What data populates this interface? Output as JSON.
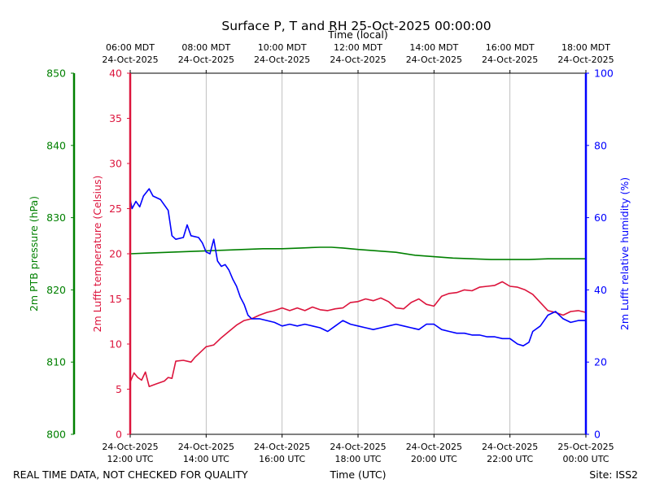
{
  "chart_data": {
    "type": "line",
    "title": "Surface P, T and RH 25-Oct-2025 00:00:00",
    "top_axis_label": "Time (local)",
    "bottom_axis_label": "Time (UTC)",
    "footer_left": "REAL TIME DATA, NOT CHECKED FOR QUALITY",
    "footer_right": "Site: ISS2",
    "x_hours_utc": [
      12,
      24
    ],
    "utc_ticks": [
      {
        "hour": 12,
        "date": "24-Oct-2025",
        "time": "12:00 UTC"
      },
      {
        "hour": 14,
        "date": "24-Oct-2025",
        "time": "14:00 UTC"
      },
      {
        "hour": 16,
        "date": "24-Oct-2025",
        "time": "16:00 UTC"
      },
      {
        "hour": 18,
        "date": "24-Oct-2025",
        "time": "18:00 UTC"
      },
      {
        "hour": 20,
        "date": "24-Oct-2025",
        "time": "20:00 UTC"
      },
      {
        "hour": 22,
        "date": "24-Oct-2025",
        "time": "22:00 UTC"
      },
      {
        "hour": 24,
        "date": "25-Oct-2025",
        "time": "00:00 UTC"
      }
    ],
    "local_ticks": [
      {
        "hour": 12,
        "time": "06:00 MDT",
        "date": "24-Oct-2025"
      },
      {
        "hour": 14,
        "time": "08:00 MDT",
        "date": "24-Oct-2025"
      },
      {
        "hour": 16,
        "time": "10:00 MDT",
        "date": "24-Oct-2025"
      },
      {
        "hour": 18,
        "time": "12:00 MDT",
        "date": "24-Oct-2025"
      },
      {
        "hour": 20,
        "time": "14:00 MDT",
        "date": "24-Oct-2025"
      },
      {
        "hour": 22,
        "time": "16:00 MDT",
        "date": "24-Oct-2025"
      },
      {
        "hour": 24,
        "time": "18:00 MDT",
        "date": "24-Oct-2025"
      }
    ],
    "grid": "vertical",
    "axes": {
      "pressure": {
        "label": "2m PTB pressure (hPa)",
        "color": "#008000",
        "ylim": [
          800,
          850
        ],
        "ticks": [
          800,
          810,
          820,
          830,
          840,
          850
        ]
      },
      "temperature": {
        "label": "2m Lufft temperature (Celsius)",
        "color": "#dc143c",
        "ylim": [
          0,
          40
        ],
        "ticks": [
          0,
          5,
          10,
          15,
          20,
          25,
          30,
          35,
          40
        ]
      },
      "humidity": {
        "label": "2m Lufft relative humidity (%)",
        "color": "#0000ff",
        "ylim": [
          0,
          100
        ],
        "ticks": [
          0,
          20,
          40,
          60,
          80,
          100
        ]
      }
    },
    "series": [
      {
        "name": "2m PTB pressure (hPa)",
        "axis": "pressure",
        "color": "#008000",
        "points": [
          [
            12.0,
            825.0
          ],
          [
            12.5,
            825.1
          ],
          [
            13.0,
            825.2
          ],
          [
            13.5,
            825.3
          ],
          [
            14.0,
            825.4
          ],
          [
            14.5,
            825.5
          ],
          [
            15.0,
            825.6
          ],
          [
            15.5,
            825.7
          ],
          [
            16.0,
            825.7
          ],
          [
            16.5,
            825.8
          ],
          [
            17.0,
            825.9
          ],
          [
            17.3,
            825.9
          ],
          [
            17.6,
            825.8
          ],
          [
            18.0,
            825.6
          ],
          [
            18.5,
            825.4
          ],
          [
            19.0,
            825.2
          ],
          [
            19.5,
            824.8
          ],
          [
            20.0,
            824.6
          ],
          [
            20.5,
            824.4
          ],
          [
            21.0,
            824.3
          ],
          [
            21.5,
            824.2
          ],
          [
            22.0,
            824.2
          ],
          [
            22.5,
            824.2
          ],
          [
            23.0,
            824.3
          ],
          [
            23.5,
            824.3
          ],
          [
            24.0,
            824.3
          ]
        ]
      },
      {
        "name": "2m Lufft temperature (Celsius)",
        "axis": "temperature",
        "color": "#dc143c",
        "points": [
          [
            12.0,
            5.8
          ],
          [
            12.1,
            6.8
          ],
          [
            12.2,
            6.3
          ],
          [
            12.3,
            6.0
          ],
          [
            12.4,
            6.9
          ],
          [
            12.5,
            5.3
          ],
          [
            12.7,
            5.6
          ],
          [
            12.9,
            5.9
          ],
          [
            13.0,
            6.3
          ],
          [
            13.1,
            6.2
          ],
          [
            13.2,
            8.1
          ],
          [
            13.4,
            8.2
          ],
          [
            13.6,
            8.0
          ],
          [
            13.7,
            8.5
          ],
          [
            13.8,
            8.9
          ],
          [
            14.0,
            9.7
          ],
          [
            14.2,
            9.9
          ],
          [
            14.4,
            10.7
          ],
          [
            14.6,
            11.4
          ],
          [
            14.8,
            12.1
          ],
          [
            15.0,
            12.6
          ],
          [
            15.2,
            12.8
          ],
          [
            15.4,
            13.2
          ],
          [
            15.6,
            13.5
          ],
          [
            15.8,
            13.7
          ],
          [
            16.0,
            14.0
          ],
          [
            16.2,
            13.7
          ],
          [
            16.4,
            14.0
          ],
          [
            16.6,
            13.7
          ],
          [
            16.8,
            14.1
          ],
          [
            17.0,
            13.8
          ],
          [
            17.2,
            13.7
          ],
          [
            17.4,
            13.9
          ],
          [
            17.6,
            14.0
          ],
          [
            17.8,
            14.6
          ],
          [
            18.0,
            14.7
          ],
          [
            18.2,
            15.0
          ],
          [
            18.4,
            14.8
          ],
          [
            18.6,
            15.1
          ],
          [
            18.8,
            14.7
          ],
          [
            19.0,
            14.0
          ],
          [
            19.2,
            13.9
          ],
          [
            19.4,
            14.6
          ],
          [
            19.6,
            15.0
          ],
          [
            19.8,
            14.4
          ],
          [
            20.0,
            14.2
          ],
          [
            20.2,
            15.3
          ],
          [
            20.4,
            15.6
          ],
          [
            20.6,
            15.7
          ],
          [
            20.8,
            16.0
          ],
          [
            21.0,
            15.9
          ],
          [
            21.2,
            16.3
          ],
          [
            21.4,
            16.4
          ],
          [
            21.6,
            16.5
          ],
          [
            21.8,
            16.9
          ],
          [
            22.0,
            16.4
          ],
          [
            22.2,
            16.3
          ],
          [
            22.4,
            16.0
          ],
          [
            22.6,
            15.5
          ],
          [
            22.8,
            14.6
          ],
          [
            23.0,
            13.7
          ],
          [
            23.2,
            13.5
          ],
          [
            23.4,
            13.2
          ],
          [
            23.6,
            13.6
          ],
          [
            23.8,
            13.7
          ],
          [
            24.0,
            13.5
          ]
        ]
      },
      {
        "name": "2m Lufft relative humidity (%)",
        "axis": "humidity",
        "color": "#0000ff",
        "points": [
          [
            12.0,
            65.0
          ],
          [
            12.05,
            62.5
          ],
          [
            12.15,
            64.5
          ],
          [
            12.25,
            63.0
          ],
          [
            12.35,
            66.0
          ],
          [
            12.5,
            68.0
          ],
          [
            12.6,
            66.0
          ],
          [
            12.8,
            65.0
          ],
          [
            13.0,
            62.0
          ],
          [
            13.1,
            55.0
          ],
          [
            13.2,
            54.0
          ],
          [
            13.4,
            54.5
          ],
          [
            13.5,
            58.0
          ],
          [
            13.6,
            55.0
          ],
          [
            13.8,
            54.5
          ],
          [
            13.9,
            53.0
          ],
          [
            14.0,
            50.5
          ],
          [
            14.1,
            50.0
          ],
          [
            14.2,
            54.0
          ],
          [
            14.3,
            48.0
          ],
          [
            14.4,
            46.5
          ],
          [
            14.5,
            47.0
          ],
          [
            14.6,
            45.5
          ],
          [
            14.7,
            43.0
          ],
          [
            14.8,
            41.0
          ],
          [
            14.9,
            38.0
          ],
          [
            15.0,
            36.0
          ],
          [
            15.1,
            33.0
          ],
          [
            15.2,
            32.0
          ],
          [
            15.4,
            32.0
          ],
          [
            15.6,
            31.5
          ],
          [
            15.8,
            31.0
          ],
          [
            16.0,
            30.0
          ],
          [
            16.2,
            30.5
          ],
          [
            16.4,
            30.0
          ],
          [
            16.6,
            30.5
          ],
          [
            16.8,
            30.0
          ],
          [
            17.0,
            29.5
          ],
          [
            17.2,
            28.5
          ],
          [
            17.4,
            30.0
          ],
          [
            17.6,
            31.5
          ],
          [
            17.8,
            30.5
          ],
          [
            18.0,
            30.0
          ],
          [
            18.2,
            29.5
          ],
          [
            18.4,
            29.0
          ],
          [
            18.6,
            29.5
          ],
          [
            18.8,
            30.0
          ],
          [
            19.0,
            30.5
          ],
          [
            19.2,
            30.0
          ],
          [
            19.4,
            29.5
          ],
          [
            19.6,
            29.0
          ],
          [
            19.8,
            30.5
          ],
          [
            20.0,
            30.5
          ],
          [
            20.2,
            29.0
          ],
          [
            20.4,
            28.5
          ],
          [
            20.6,
            28.0
          ],
          [
            20.8,
            28.0
          ],
          [
            21.0,
            27.5
          ],
          [
            21.2,
            27.5
          ],
          [
            21.4,
            27.0
          ],
          [
            21.6,
            27.0
          ],
          [
            21.8,
            26.5
          ],
          [
            22.0,
            26.5
          ],
          [
            22.2,
            25.0
          ],
          [
            22.35,
            24.5
          ],
          [
            22.5,
            25.5
          ],
          [
            22.6,
            28.5
          ],
          [
            22.8,
            30.0
          ],
          [
            23.0,
            33.0
          ],
          [
            23.2,
            34.0
          ],
          [
            23.4,
            32.0
          ],
          [
            23.6,
            31.0
          ],
          [
            23.8,
            31.5
          ],
          [
            24.0,
            31.5
          ]
        ]
      }
    ]
  }
}
